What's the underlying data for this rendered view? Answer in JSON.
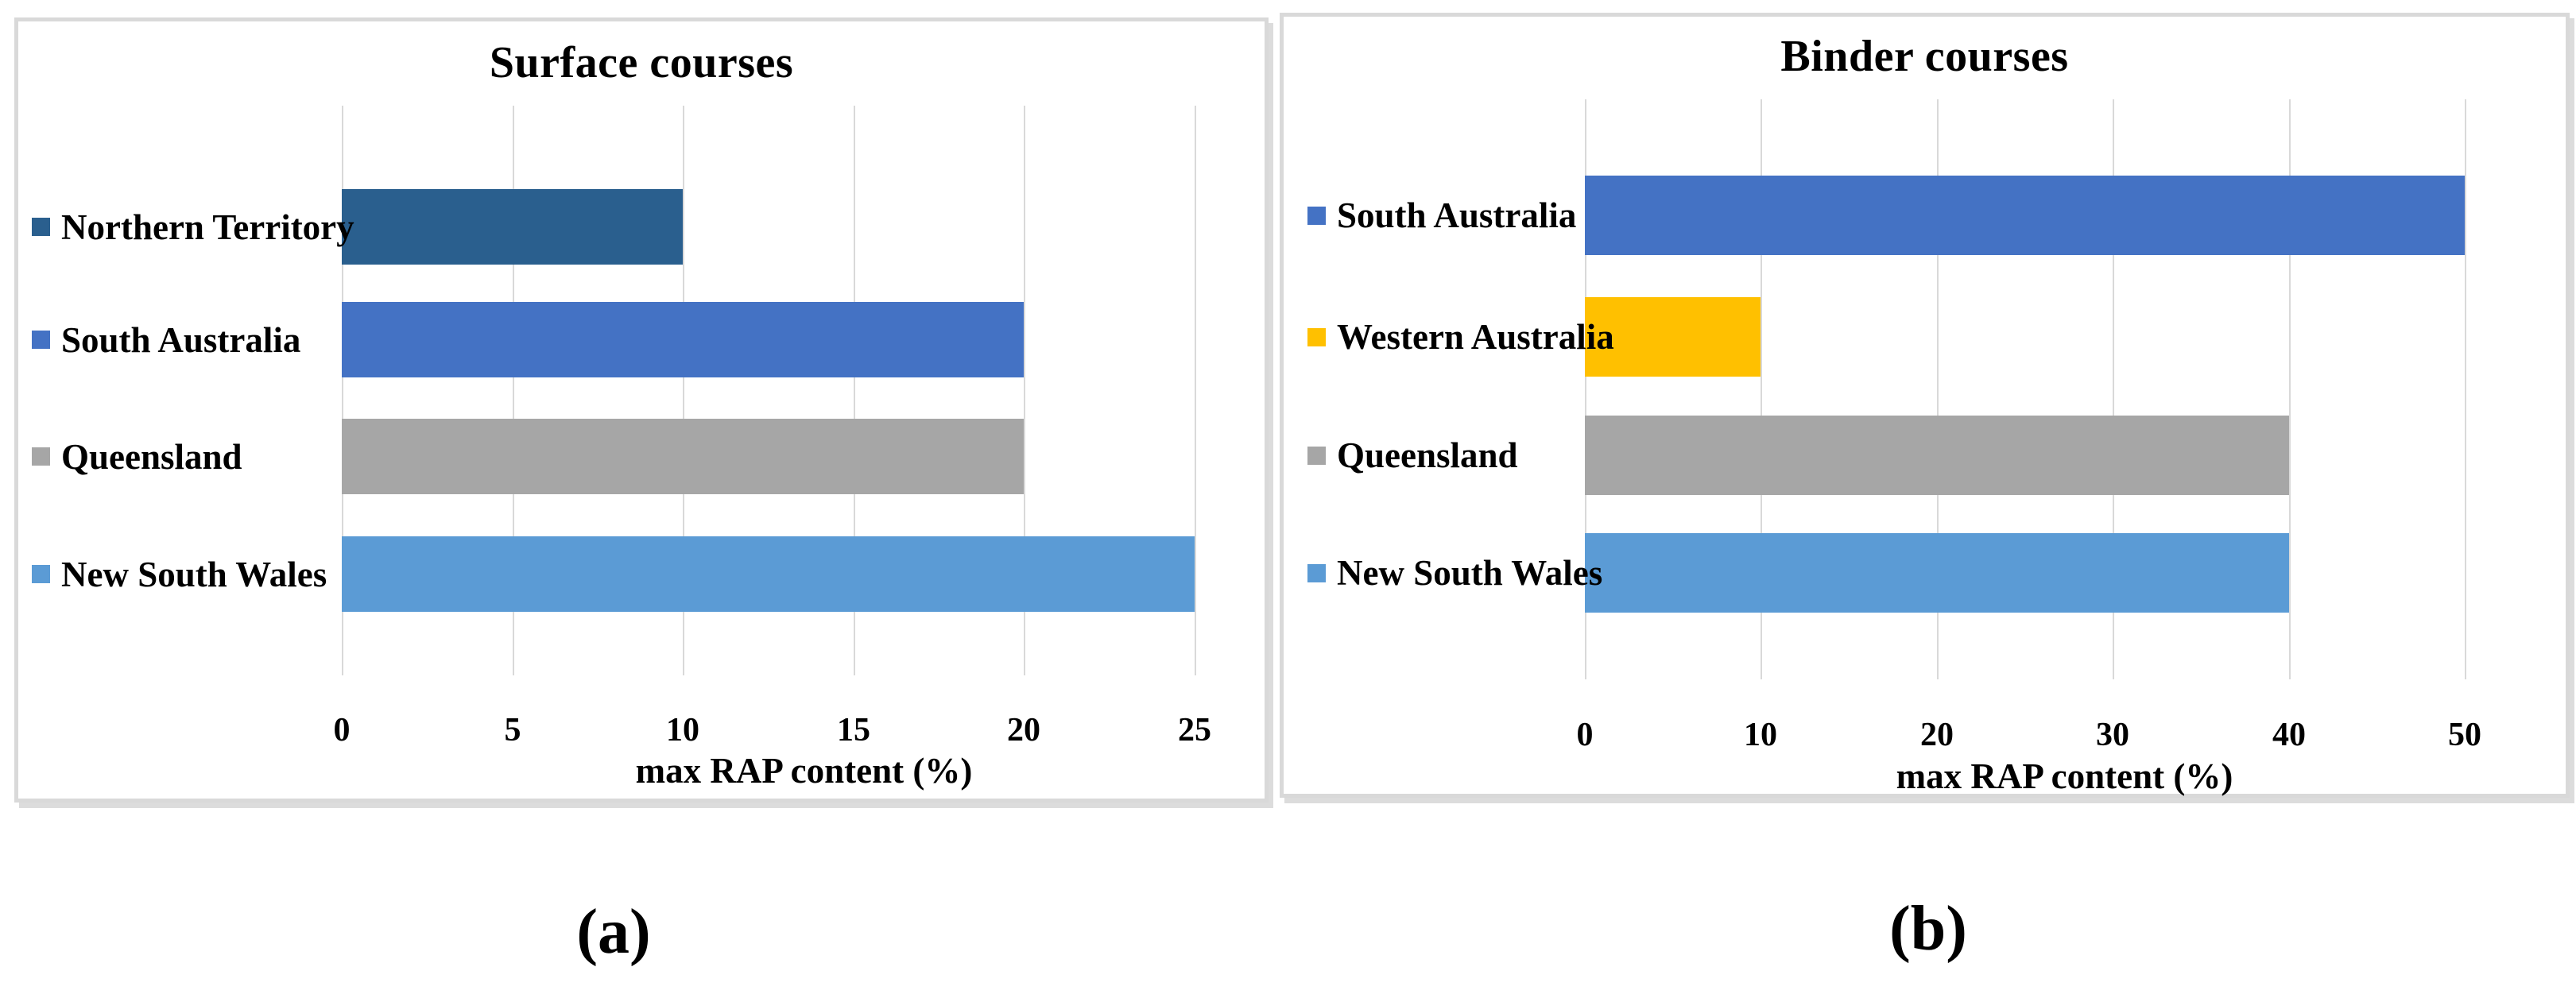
{
  "colors": {
    "gridline": "#d9d9d9",
    "panel_border": "#d9d9d9",
    "panel_shadow": "#dcdcdc",
    "text": "#000000"
  },
  "chart_data": [
    {
      "type": "bar",
      "orientation": "horizontal",
      "title": "Surface courses",
      "categories": [
        "Northern Territory",
        "South Australia",
        "Queensland",
        "New South Wales"
      ],
      "values": [
        10,
        20,
        20,
        25
      ],
      "bar_colors": [
        "#2a5f8e",
        "#4472c4",
        "#a6a6a6",
        "#5b9bd5"
      ],
      "xlabel": "max RAP content (%)",
      "xlim": [
        0,
        25
      ],
      "xticks": [
        0,
        5,
        10,
        15,
        20,
        25
      ],
      "grid": true,
      "legend_position": "none",
      "panel_label": "(a)"
    },
    {
      "type": "bar",
      "orientation": "horizontal",
      "title": "Binder courses",
      "categories": [
        "South Australia",
        "Western Australia",
        "Queensland",
        "New South Wales"
      ],
      "values": [
        50,
        10,
        40,
        40
      ],
      "bar_colors": [
        "#4472c4",
        "#ffc000",
        "#a6a6a6",
        "#5b9bd5"
      ],
      "xlabel": "max RAP content (%)",
      "xlim": [
        0,
        50
      ],
      "xticks": [
        0,
        10,
        20,
        30,
        40,
        50
      ],
      "grid": true,
      "legend_position": "none",
      "panel_label": "(b)"
    }
  ]
}
